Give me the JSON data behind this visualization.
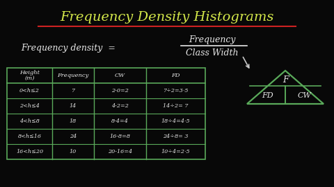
{
  "background_color": "#080808",
  "title": "Frequency Density Histograms",
  "title_color": "#d4e84a",
  "title_underline_color": "#cc2222",
  "formula_color": "#e8e8e8",
  "table_headers": [
    "Height\n(m)",
    "Frequency",
    "CW",
    "FD"
  ],
  "table_rows": [
    [
      "0<h≤2",
      "7",
      "2-0=2",
      "7÷2=3·5"
    ],
    [
      "2<h≤4",
      "14",
      "4-2=2",
      "14÷2= 7"
    ],
    [
      "4<h≤8",
      "18",
      "8-4=4",
      "18÷4=4·5"
    ],
    [
      "8<h≤16",
      "24",
      "16-8=8",
      "24÷8= 3"
    ],
    [
      "16<h≤20",
      "10",
      "20-16=4",
      "10÷4=2·5"
    ]
  ],
  "table_border_color": "#5aaa5a",
  "table_text_color": "#e8e8e8",
  "triangle_color": "#5aaa5a",
  "triangle_label_color": "#e8e8e8",
  "arrow_color": "#c8c8c8"
}
